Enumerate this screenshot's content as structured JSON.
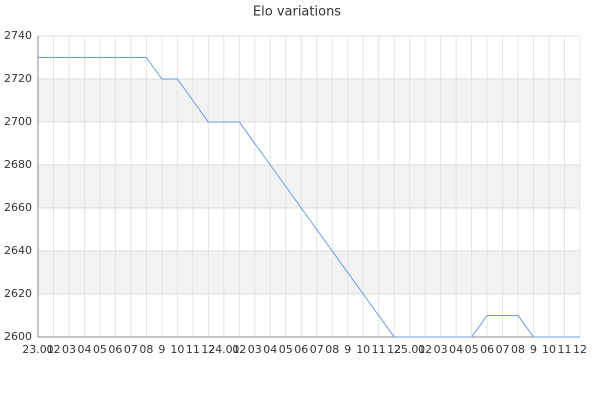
{
  "chart_data": {
    "type": "line",
    "title": "Elo variations",
    "categories": [
      "23.01",
      "02",
      "03",
      "04",
      "05",
      "06",
      "07",
      "08",
      "9",
      "10",
      "11",
      "12",
      "24.01",
      "02",
      "03",
      "04",
      "05",
      "06",
      "07",
      "08",
      "9",
      "10",
      "11",
      "12",
      "25.01",
      "02",
      "03",
      "04",
      "05",
      "06",
      "07",
      "08",
      "9",
      "10",
      "11",
      "12"
    ],
    "series": [
      {
        "name": "Elo",
        "color": "#6a9be0",
        "values": [
          2730,
          2730,
          2730,
          2730,
          2730,
          2730,
          2730,
          2730,
          2720,
          2720,
          2710,
          2700,
          2700,
          2700,
          2690,
          2680,
          2670,
          2660,
          2650,
          2640,
          2630,
          2620,
          2610,
          2600,
          2600,
          2600,
          2600,
          2600,
          2600,
          2610,
          2610,
          2610,
          2600,
          2600,
          2600,
          2600
        ]
      }
    ],
    "ylim": [
      2600,
      2740
    ],
    "yticks": [
      2600,
      2620,
      2640,
      2660,
      2680,
      2700,
      2720,
      2740
    ],
    "grid": true,
    "bands": true
  }
}
